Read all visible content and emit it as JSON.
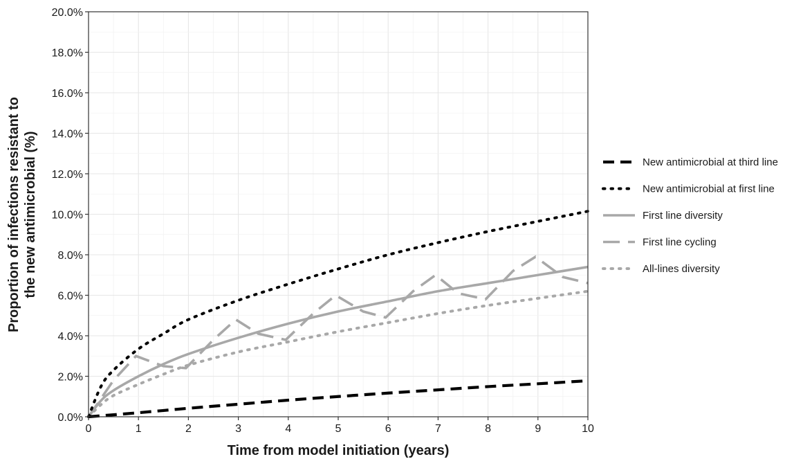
{
  "chart_data": {
    "type": "line",
    "xlabel": "Time from model initiation (years)",
    "ylabel_line1": "Proportion of infections resistant to",
    "ylabel_line2": "the new antimicrobial (%)",
    "xlim": [
      0,
      10
    ],
    "ylim": [
      0,
      20
    ],
    "x_ticks": [
      0,
      1,
      2,
      3,
      4,
      5,
      6,
      7,
      8,
      9,
      10
    ],
    "x_tick_labels": [
      "0",
      "1",
      "2",
      "3",
      "4",
      "5",
      "6",
      "7",
      "8",
      "9",
      "10"
    ],
    "y_ticks": [
      0,
      2,
      4,
      6,
      8,
      10,
      12,
      14,
      16,
      18,
      20
    ],
    "y_tick_labels": [
      "0.0%",
      "2.0%",
      "4.0%",
      "6.0%",
      "8.0%",
      "10.0%",
      "12.0%",
      "14.0%",
      "16.0%",
      "18.0%",
      "20.0%"
    ],
    "grid": true,
    "legend_position": "right",
    "series": [
      {
        "name": "New antimicrobial at third line",
        "color": "#000000",
        "style": "dashed",
        "x": [
          0,
          1,
          2,
          3,
          4,
          5,
          6,
          7,
          8,
          9,
          10
        ],
        "y": [
          0,
          0.2,
          0.42,
          0.62,
          0.82,
          1.0,
          1.17,
          1.33,
          1.49,
          1.63,
          1.78
        ]
      },
      {
        "name": "New antimicrobial at first line",
        "color": "#000000",
        "style": "dotted",
        "x": [
          0,
          0.25,
          0.5,
          1,
          1.5,
          2,
          3,
          4,
          5,
          6,
          7,
          8,
          9,
          10
        ],
        "y": [
          0,
          1.5,
          2.3,
          3.35,
          4.1,
          4.8,
          5.75,
          6.55,
          7.3,
          8.0,
          8.6,
          9.15,
          9.65,
          10.15
        ]
      },
      {
        "name": "First line diversity",
        "color": "#a8a8a8",
        "style": "solid",
        "x": [
          0,
          0.25,
          0.5,
          1,
          1.5,
          2,
          3,
          4,
          5,
          6,
          7,
          8,
          9,
          10
        ],
        "y": [
          0,
          0.8,
          1.3,
          2.0,
          2.6,
          3.1,
          3.9,
          4.6,
          5.2,
          5.7,
          6.2,
          6.6,
          7.0,
          7.4
        ]
      },
      {
        "name": "First line cycling",
        "color": "#a8a8a8",
        "style": "longdash",
        "x": [
          0,
          0.5,
          0.95,
          1.5,
          1.95,
          2.5,
          2.95,
          3.4,
          3.95,
          4.5,
          4.95,
          5.5,
          5.95,
          6.5,
          6.95,
          7.4,
          7.95,
          8.5,
          8.95,
          9.5,
          10
        ],
        "y": [
          0,
          1.8,
          3.0,
          2.5,
          2.4,
          3.8,
          4.8,
          4.1,
          3.8,
          5.1,
          6.0,
          5.2,
          4.9,
          6.2,
          7.0,
          6.1,
          5.8,
          7.2,
          7.9,
          6.9,
          6.6
        ]
      },
      {
        "name": "All-lines diversity",
        "color": "#a8a8a8",
        "style": "dotted",
        "x": [
          0,
          0.25,
          0.5,
          1,
          1.5,
          2,
          3,
          4,
          5,
          6,
          7,
          8,
          9,
          10
        ],
        "y": [
          0,
          0.6,
          1.05,
          1.6,
          2.1,
          2.55,
          3.2,
          3.7,
          4.2,
          4.65,
          5.1,
          5.5,
          5.85,
          6.2
        ]
      }
    ]
  }
}
